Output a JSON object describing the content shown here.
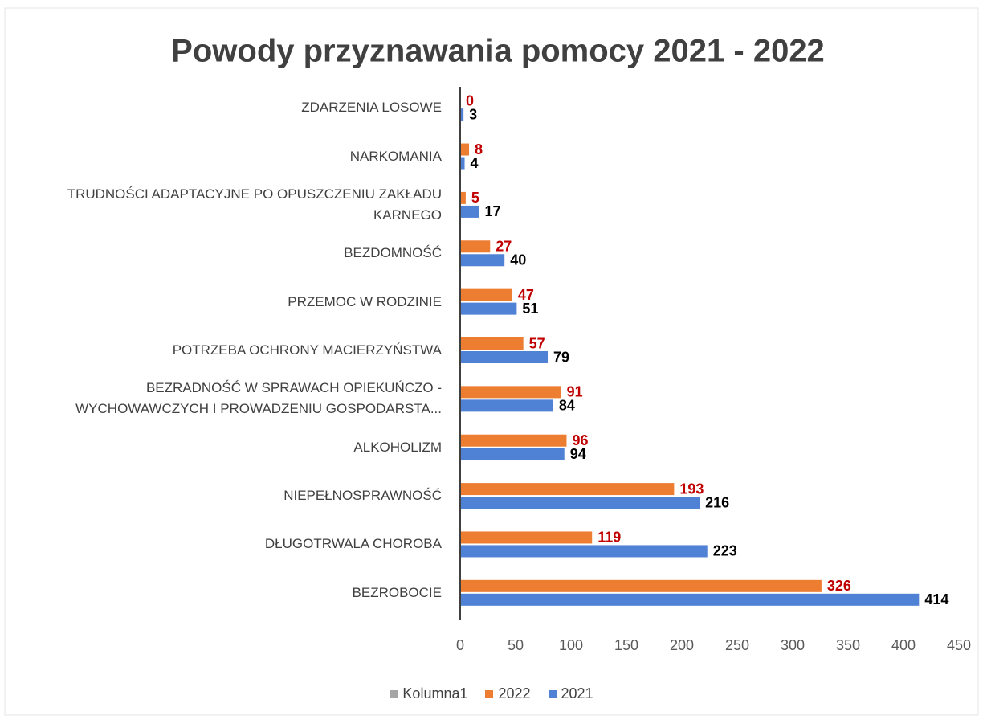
{
  "chart_data": {
    "type": "bar",
    "orientation": "horizontal",
    "title": "Powody przyznawania pomocy 2021 - 2022",
    "categories": [
      "ZDARZENIA LOSOWE",
      "NARKOMANIA",
      "TRUDNOŚCI ADAPTACYJNE PO OPUSZCZENIU ZAKŁADU\nKARNEGO",
      "BEZDOMNOŚĆ",
      "PRZEMOC W RODZINIE",
      "POTRZEBA OCHRONY MACIERZYŃSTWA",
      "BEZRADNOŚĆ W SPRAWACH OPIEKUŃCZO -\nWYCHOWAWCZYCH I PROWADZENIU GOSPODARSTA...",
      "ALKOHOLIZM",
      "NIEPEŁNOSPRAWNOŚĆ",
      "DŁUGOTRWALA CHOROBA",
      "BEZROBOCIE"
    ],
    "series": [
      {
        "name": "Kolumna1",
        "color": "#a5a5a5",
        "values": [
          null,
          null,
          null,
          null,
          null,
          null,
          null,
          null,
          null,
          null,
          null
        ]
      },
      {
        "name": "2022",
        "color": "#ed7d31",
        "label_color": "#c00000",
        "values": [
          0,
          8,
          5,
          27,
          47,
          57,
          91,
          96,
          193,
          119,
          326
        ]
      },
      {
        "name": "2021",
        "color": "#4f81d4",
        "label_color": "#000000",
        "values": [
          3,
          4,
          17,
          40,
          51,
          79,
          84,
          94,
          216,
          223,
          414
        ]
      }
    ],
    "xlim": [
      0,
      450
    ],
    "xticks": [
      0,
      50,
      100,
      150,
      200,
      250,
      300,
      350,
      400,
      450
    ],
    "grid": false,
    "legend": "bottom"
  }
}
